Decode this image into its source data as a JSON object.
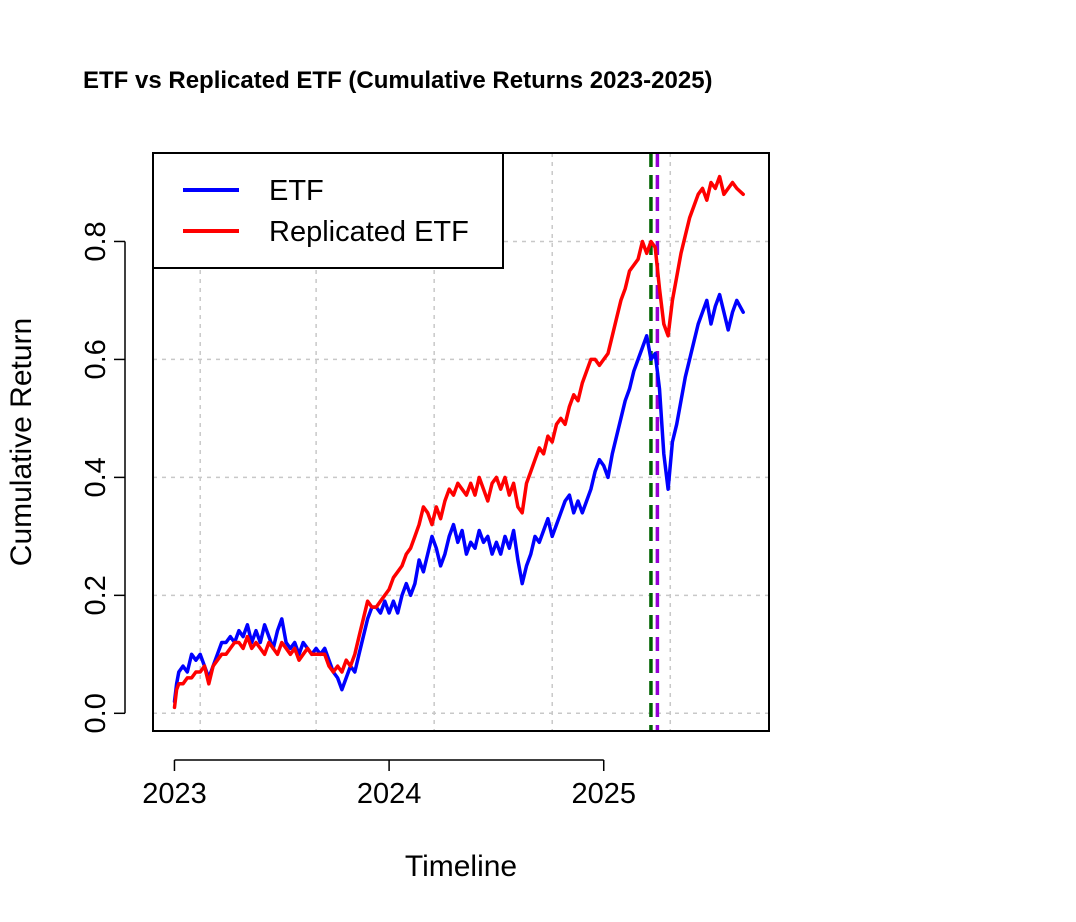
{
  "chart_data": {
    "type": "line",
    "title": "ETF vs Replicated ETF (Cumulative Returns 2023-2025)",
    "xlabel": "Timeline",
    "ylabel": "Cumulative Return",
    "xlim": [
      2022.9,
      2025.77
    ],
    "ylim": [
      -0.03,
      0.95
    ],
    "x_ticks": [
      2023,
      2024,
      2025
    ],
    "x_tick_labels": [
      "2023",
      "2024",
      "2025"
    ],
    "y_ticks": [
      0.0,
      0.2,
      0.4,
      0.6,
      0.8
    ],
    "y_tick_labels": [
      "0.0",
      "0.2",
      "0.4",
      "0.6",
      "0.8"
    ],
    "x_grid": [
      2023.12,
      2023.66,
      2024.21,
      2024.76,
      2025.31
    ],
    "grid": true,
    "legend_position": "top-left",
    "series": [
      {
        "name": "ETF",
        "color": "#0000ff",
        "x": [
          2023.0,
          2023.01,
          2023.02,
          2023.04,
          2023.06,
          2023.08,
          2023.1,
          2023.12,
          2023.14,
          2023.16,
          2023.18,
          2023.2,
          2023.22,
          2023.24,
          2023.26,
          2023.28,
          2023.3,
          2023.32,
          2023.34,
          2023.36,
          2023.38,
          2023.4,
          2023.42,
          2023.44,
          2023.46,
          2023.48,
          2023.5,
          2023.52,
          2023.54,
          2023.56,
          2023.58,
          2023.6,
          2023.62,
          2023.64,
          2023.66,
          2023.68,
          2023.7,
          2023.72,
          2023.74,
          2023.76,
          2023.78,
          2023.8,
          2023.82,
          2023.84,
          2023.86,
          2023.88,
          2023.9,
          2023.92,
          2023.94,
          2023.96,
          2023.98,
          2024.0,
          2024.02,
          2024.04,
          2024.06,
          2024.08,
          2024.1,
          2024.12,
          2024.14,
          2024.16,
          2024.18,
          2024.2,
          2024.22,
          2024.24,
          2024.26,
          2024.28,
          2024.3,
          2024.32,
          2024.34,
          2024.36,
          2024.38,
          2024.4,
          2024.42,
          2024.44,
          2024.46,
          2024.48,
          2024.5,
          2024.52,
          2024.54,
          2024.56,
          2024.58,
          2024.6,
          2024.62,
          2024.64,
          2024.66,
          2024.68,
          2024.7,
          2024.72,
          2024.74,
          2024.76,
          2024.78,
          2024.8,
          2024.82,
          2024.84,
          2024.86,
          2024.88,
          2024.9,
          2024.92,
          2024.94,
          2024.96,
          2024.98,
          2025.0,
          2025.02,
          2025.04,
          2025.06,
          2025.08,
          2025.1,
          2025.12,
          2025.14,
          2025.16,
          2025.18,
          2025.2,
          2025.22,
          2025.24,
          2025.26,
          2025.28,
          2025.3,
          2025.32,
          2025.34,
          2025.36,
          2025.38,
          2025.4,
          2025.42,
          2025.44,
          2025.46,
          2025.48,
          2025.5,
          2025.52,
          2025.54,
          2025.56,
          2025.58,
          2025.6,
          2025.62,
          2025.65
        ],
        "values": [
          0.02,
          0.05,
          0.07,
          0.08,
          0.07,
          0.1,
          0.09,
          0.1,
          0.08,
          0.06,
          0.08,
          0.1,
          0.12,
          0.12,
          0.13,
          0.12,
          0.14,
          0.13,
          0.15,
          0.12,
          0.14,
          0.12,
          0.15,
          0.13,
          0.11,
          0.14,
          0.16,
          0.12,
          0.11,
          0.12,
          0.1,
          0.12,
          0.11,
          0.1,
          0.11,
          0.1,
          0.11,
          0.09,
          0.07,
          0.06,
          0.04,
          0.06,
          0.08,
          0.07,
          0.1,
          0.13,
          0.16,
          0.18,
          0.18,
          0.17,
          0.19,
          0.17,
          0.19,
          0.17,
          0.2,
          0.22,
          0.2,
          0.22,
          0.26,
          0.24,
          0.27,
          0.3,
          0.28,
          0.25,
          0.27,
          0.3,
          0.32,
          0.29,
          0.31,
          0.27,
          0.29,
          0.28,
          0.31,
          0.29,
          0.3,
          0.27,
          0.29,
          0.27,
          0.3,
          0.28,
          0.31,
          0.26,
          0.22,
          0.25,
          0.27,
          0.3,
          0.29,
          0.31,
          0.33,
          0.3,
          0.32,
          0.34,
          0.36,
          0.37,
          0.34,
          0.36,
          0.34,
          0.36,
          0.38,
          0.41,
          0.43,
          0.42,
          0.4,
          0.44,
          0.47,
          0.5,
          0.53,
          0.55,
          0.58,
          0.6,
          0.62,
          0.64,
          0.6,
          0.61,
          0.55,
          0.44,
          0.38,
          0.46,
          0.49,
          0.53,
          0.57,
          0.6,
          0.63,
          0.66,
          0.68,
          0.7,
          0.66,
          0.69,
          0.71,
          0.68,
          0.65,
          0.68,
          0.7,
          0.68
        ]
      },
      {
        "name": "Replicated ETF",
        "color": "#ff0000",
        "x": [
          2023.0,
          2023.01,
          2023.02,
          2023.04,
          2023.06,
          2023.08,
          2023.1,
          2023.12,
          2023.14,
          2023.16,
          2023.18,
          2023.2,
          2023.22,
          2023.24,
          2023.26,
          2023.28,
          2023.3,
          2023.32,
          2023.34,
          2023.36,
          2023.38,
          2023.4,
          2023.42,
          2023.44,
          2023.46,
          2023.48,
          2023.5,
          2023.52,
          2023.54,
          2023.56,
          2023.58,
          2023.6,
          2023.62,
          2023.64,
          2023.66,
          2023.68,
          2023.7,
          2023.72,
          2023.74,
          2023.76,
          2023.78,
          2023.8,
          2023.82,
          2023.84,
          2023.86,
          2023.88,
          2023.9,
          2023.92,
          2023.94,
          2023.96,
          2023.98,
          2024.0,
          2024.02,
          2024.04,
          2024.06,
          2024.08,
          2024.1,
          2024.12,
          2024.14,
          2024.16,
          2024.18,
          2024.2,
          2024.22,
          2024.24,
          2024.26,
          2024.28,
          2024.3,
          2024.32,
          2024.34,
          2024.36,
          2024.38,
          2024.4,
          2024.42,
          2024.44,
          2024.46,
          2024.48,
          2024.5,
          2024.52,
          2024.54,
          2024.56,
          2024.58,
          2024.6,
          2024.62,
          2024.64,
          2024.66,
          2024.68,
          2024.7,
          2024.72,
          2024.74,
          2024.76,
          2024.78,
          2024.8,
          2024.82,
          2024.84,
          2024.86,
          2024.88,
          2024.9,
          2024.92,
          2024.94,
          2024.96,
          2024.98,
          2025.0,
          2025.02,
          2025.04,
          2025.06,
          2025.08,
          2025.1,
          2025.12,
          2025.14,
          2025.16,
          2025.18,
          2025.2,
          2025.22,
          2025.24,
          2025.26,
          2025.28,
          2025.3,
          2025.32,
          2025.34,
          2025.36,
          2025.38,
          2025.4,
          2025.42,
          2025.44,
          2025.46,
          2025.48,
          2025.5,
          2025.52,
          2025.54,
          2025.56,
          2025.58,
          2025.6,
          2025.62,
          2025.65
        ],
        "values": [
          0.01,
          0.04,
          0.05,
          0.05,
          0.06,
          0.06,
          0.07,
          0.07,
          0.08,
          0.05,
          0.08,
          0.09,
          0.1,
          0.1,
          0.11,
          0.12,
          0.12,
          0.11,
          0.13,
          0.11,
          0.12,
          0.11,
          0.1,
          0.12,
          0.11,
          0.1,
          0.12,
          0.11,
          0.1,
          0.11,
          0.09,
          0.1,
          0.11,
          0.1,
          0.1,
          0.1,
          0.1,
          0.08,
          0.07,
          0.08,
          0.07,
          0.09,
          0.08,
          0.1,
          0.13,
          0.16,
          0.19,
          0.18,
          0.18,
          0.19,
          0.2,
          0.21,
          0.23,
          0.24,
          0.25,
          0.27,
          0.28,
          0.3,
          0.32,
          0.35,
          0.34,
          0.32,
          0.35,
          0.33,
          0.36,
          0.38,
          0.37,
          0.39,
          0.38,
          0.37,
          0.39,
          0.37,
          0.4,
          0.38,
          0.36,
          0.39,
          0.4,
          0.38,
          0.4,
          0.37,
          0.39,
          0.35,
          0.34,
          0.39,
          0.41,
          0.43,
          0.45,
          0.44,
          0.47,
          0.46,
          0.49,
          0.5,
          0.49,
          0.52,
          0.54,
          0.53,
          0.56,
          0.58,
          0.6,
          0.6,
          0.59,
          0.6,
          0.61,
          0.64,
          0.67,
          0.7,
          0.72,
          0.75,
          0.76,
          0.77,
          0.8,
          0.78,
          0.8,
          0.79,
          0.72,
          0.66,
          0.64,
          0.7,
          0.74,
          0.78,
          0.81,
          0.84,
          0.86,
          0.88,
          0.89,
          0.87,
          0.9,
          0.89,
          0.91,
          0.88,
          0.89,
          0.9,
          0.89,
          0.88
        ]
      }
    ],
    "vlines": [
      {
        "x": 2025.22,
        "color": "#006400",
        "style": "dashed"
      },
      {
        "x": 2025.25,
        "color": "#9400d3",
        "style": "dashed"
      }
    ]
  }
}
